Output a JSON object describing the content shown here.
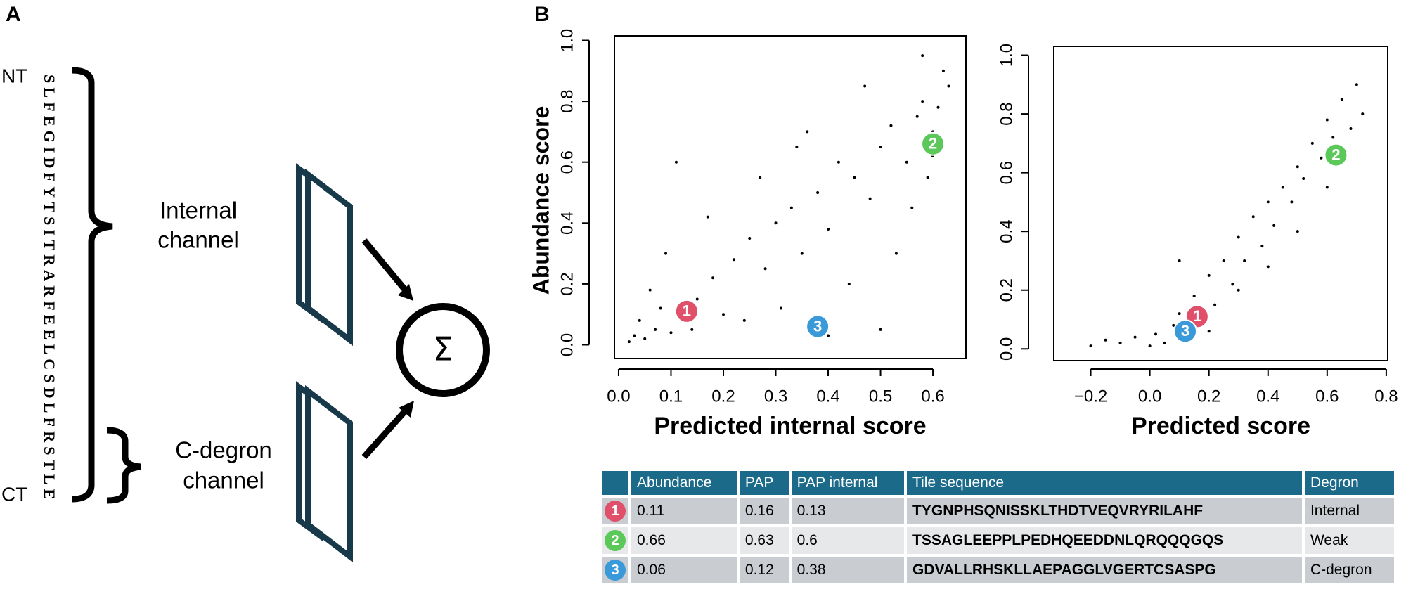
{
  "panel_labels": [
    "A",
    "B"
  ],
  "diagram": {
    "nt_label": "NT",
    "ct_label": "CT",
    "sequence": "SLFEGIDFYTSITRARFEELCSDLFRSTLE",
    "internal_channel": [
      "Internal",
      "channel"
    ],
    "cdegron_channel": [
      "C-degron",
      "channel"
    ],
    "sum_symbol": "Σ"
  },
  "chart_data": [
    {
      "type": "scatter",
      "xlabel": "Predicted internal score",
      "ylabel": "Abundance score",
      "xlim": [
        -0.008,
        0.663
      ],
      "ylim": [
        -0.045,
        1.015
      ],
      "xticks": [
        {
          "value": 0,
          "label": "0.0"
        },
        0.1,
        0.2,
        0.3,
        0.4,
        0.5,
        0.6
      ],
      "yticks": [
        {
          "value": 0,
          "label": "0.0"
        },
        0.2,
        0.4,
        0.6,
        0.8,
        {
          "value": 1,
          "label": "1.0"
        }
      ],
      "color": "#000000",
      "points": {
        "x": [
          0.02,
          0.03,
          0.05,
          0.04,
          0.07,
          0.08,
          0.1,
          0.06,
          0.12,
          0.15,
          0.18,
          0.09,
          0.2,
          0.22,
          0.25,
          0.14,
          0.28,
          0.3,
          0.33,
          0.35,
          0.27,
          0.38,
          0.4,
          0.42,
          0.45,
          0.36,
          0.48,
          0.5,
          0.52,
          0.55,
          0.47,
          0.57,
          0.58,
          0.6,
          0.62,
          0.59,
          0.61,
          0.56,
          0.53,
          0.44,
          0.31,
          0.24,
          0.17,
          0.11,
          0.5,
          0.4,
          0.6,
          0.58,
          0.63,
          0.34
        ],
        "y": [
          0.01,
          0.03,
          0.02,
          0.08,
          0.05,
          0.12,
          0.04,
          0.18,
          0.09,
          0.15,
          0.22,
          0.3,
          0.1,
          0.28,
          0.35,
          0.05,
          0.25,
          0.4,
          0.45,
          0.3,
          0.55,
          0.5,
          0.38,
          0.6,
          0.55,
          0.7,
          0.48,
          0.65,
          0.72,
          0.6,
          0.85,
          0.75,
          0.8,
          0.7,
          0.9,
          0.55,
          0.78,
          0.45,
          0.3,
          0.2,
          0.12,
          0.08,
          0.42,
          0.6,
          0.05,
          0.03,
          0.62,
          0.95,
          0.85,
          0.65
        ]
      },
      "highlights": {
        "labels": [
          "1",
          "2",
          "3"
        ],
        "colors": [
          "#e0506a",
          "#5cc85a",
          "#3a9ad9"
        ],
        "x": [
          0.13,
          0.6,
          0.38
        ],
        "y": [
          0.11,
          0.66,
          0.06
        ]
      }
    },
    {
      "type": "scatter",
      "xlabel": "Predicted score",
      "xlim": [
        -0.325,
        0.805
      ],
      "ylim": [
        -0.04,
        1.03
      ],
      "xticks": [
        {
          "value": -0.2,
          "label": "−0.2"
        },
        {
          "value": 0,
          "label": "0.0"
        },
        0.2,
        0.4,
        0.6,
        0.8
      ],
      "yticks": [
        {
          "value": 0,
          "label": "0.0"
        },
        0.2,
        0.4,
        0.6,
        0.8,
        {
          "value": 1,
          "label": "1.0"
        }
      ],
      "color": "#000000",
      "points": {
        "x": [
          -0.2,
          -0.1,
          -0.05,
          0,
          0.02,
          0.05,
          0.08,
          0.1,
          0.12,
          0.15,
          0.18,
          0.2,
          0.22,
          0.25,
          0.28,
          0.3,
          0.32,
          0.35,
          0.38,
          0.4,
          0.42,
          0.45,
          0.48,
          0.5,
          0.52,
          0.55,
          0.58,
          0.6,
          0.62,
          0.65,
          0.68,
          0.7,
          0.72,
          0.3,
          0.4,
          0.1,
          0.2,
          0.5,
          0.6,
          -0.15
        ],
        "y": [
          0.01,
          0.02,
          0.04,
          0.01,
          0.05,
          0.02,
          0.08,
          0.12,
          0.04,
          0.18,
          0.1,
          0.25,
          0.15,
          0.3,
          0.22,
          0.38,
          0.3,
          0.45,
          0.35,
          0.5,
          0.42,
          0.55,
          0.5,
          0.62,
          0.58,
          0.7,
          0.65,
          0.78,
          0.72,
          0.85,
          0.75,
          0.9,
          0.8,
          0.2,
          0.28,
          0.3,
          0.06,
          0.4,
          0.55,
          0.03
        ]
      },
      "highlights": {
        "labels": [
          "1",
          "2",
          "3"
        ],
        "colors": [
          "#e0506a",
          "#5cc85a",
          "#3a9ad9"
        ],
        "x": [
          0.16,
          0.63,
          0.12
        ],
        "y": [
          0.11,
          0.66,
          0.06
        ]
      }
    }
  ],
  "table": {
    "columns": [
      "Abundance",
      "PAP",
      "PAP internal",
      "Tile sequence",
      "Degron"
    ],
    "rows": [
      {
        "marker": "1",
        "marker_color": "#e0506a",
        "cells": [
          0.11,
          0.16,
          0.13,
          "TYGNPHSQNISSKLTHDTVEQVRYRILAHF",
          "Internal"
        ]
      },
      {
        "marker": "2",
        "marker_color": "#5cc85a",
        "cells": [
          0.66,
          0.63,
          0.6,
          "TSSAGLEEPPLPEDHQEEDDNLQRQQQGQS",
          "Weak"
        ]
      },
      {
        "marker": "3",
        "marker_color": "#3a9ad9",
        "cells": [
          0.06,
          0.12,
          0.38,
          "GDVALLRHSKLLAEPAGGLVGERTCSASPG",
          "C-degron"
        ]
      }
    ]
  }
}
